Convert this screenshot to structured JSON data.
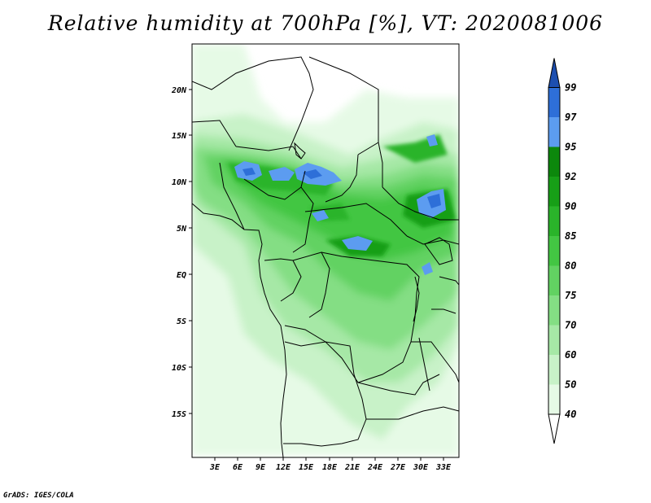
{
  "title": "Relative humidity at 700hPa [%], VT: 2020081006",
  "credit": "GrADS: IGES/COLA",
  "map": {
    "lat_labels": [
      "20N",
      "15N",
      "10N",
      "5N",
      "EQ",
      "5S",
      "10S",
      "15S"
    ],
    "lon_labels": [
      "3E",
      "6E",
      "9E",
      "12E",
      "15E",
      "18E",
      "21E",
      "24E",
      "27E",
      "30E",
      "33E"
    ],
    "lat_range": [
      -19.5,
      24.5
    ],
    "lon_range": [
      0,
      35
    ]
  },
  "colorbar": {
    "levels": [
      "40",
      "50",
      "60",
      "70",
      "75",
      "80",
      "85",
      "90",
      "92",
      "95",
      "97",
      "99"
    ],
    "colors": [
      "#ffffff",
      "#e6fae6",
      "#c8f2c8",
      "#a6e8a6",
      "#84de84",
      "#62d262",
      "#43c643",
      "#2ab42a",
      "#179f17",
      "#0c880c",
      "#5c9cf0",
      "#2e6fd8",
      "#1d4fb0"
    ]
  }
}
